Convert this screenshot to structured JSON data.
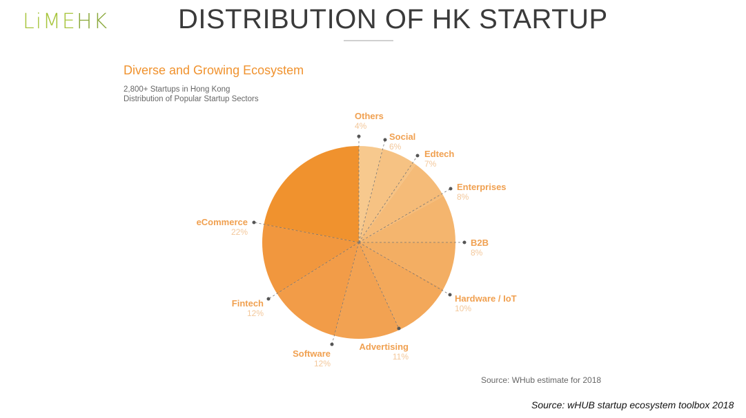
{
  "header": {
    "logo_main": "LiME",
    "logo_accent": "HK",
    "title": "DISTRIBUTION OF HK STARTUP"
  },
  "chart_data": {
    "type": "pie",
    "title": "Diverse and Growing Ecosystem",
    "subtitle_lines": [
      "2,800+ Startups in Hong Kong",
      "Distribution of Popular Startup Sectors"
    ],
    "categories": [
      "Others",
      "Social",
      "Edtech",
      "Enterprises",
      "B2B",
      "Hardware / IoT",
      "Advertising",
      "Software",
      "Fintech",
      "eCommerce"
    ],
    "values": [
      4,
      6,
      7,
      8,
      8,
      10,
      11,
      12,
      12,
      22
    ],
    "labels": [
      "4%",
      "6%",
      "7%",
      "8%",
      "8%",
      "10%",
      "11%",
      "12%",
      "12%",
      "22%"
    ],
    "colors": [
      "#f7c98e",
      "#f6c283",
      "#f5bb78",
      "#f4b56e",
      "#f3ae63",
      "#f3a85a",
      "#f2a252",
      "#f29c48",
      "#f1973e",
      "#f0922e"
    ],
    "source_note": "Source: WHub estimate for 2018"
  },
  "footer": {
    "source": "Source: wHUB startup ecosystem toolbox 2018"
  }
}
